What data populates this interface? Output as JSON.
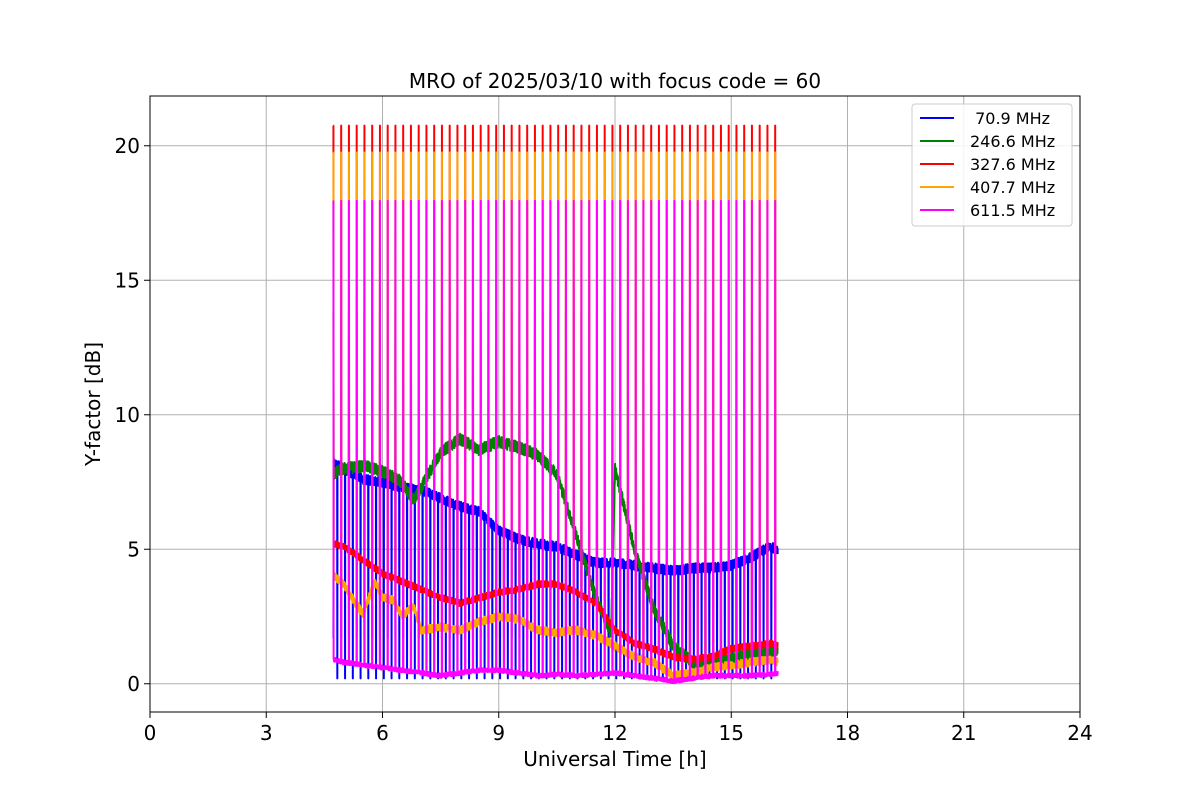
{
  "chart_data": {
    "type": "line",
    "title": "MRO of 2025/03/10 with focus code = 60",
    "xlabel": "Universal Time [h]",
    "ylabel": "Y-factor [dB]",
    "xlim": [
      0,
      24
    ],
    "ylim": [
      -1.05,
      21.85
    ],
    "xticks": [
      0,
      3,
      6,
      9,
      12,
      15,
      18,
      21,
      24
    ],
    "yticks": [
      0,
      5,
      10,
      15,
      20
    ],
    "grid": true,
    "legend_position": "top-right",
    "observation_start_h": 4.73,
    "observation_end_h": 16.2,
    "calibration_period_h": 0.2,
    "calibration_peak_values": {
      "70.9 MHz": 1.7,
      "246.6 MHz": 13.8,
      "327.6 MHz": 20.75,
      "407.7 MHz": 19.75,
      "611.5 MHz": 17.95
    },
    "series": [
      {
        "name": " 70.9 MHz",
        "color": "#0000ff",
        "x": [
          4.75,
          5.0,
          5.5,
          6.0,
          6.5,
          7.0,
          7.5,
          8.0,
          8.5,
          9.0,
          9.5,
          10.0,
          10.5,
          11.0,
          11.5,
          12.0,
          12.5,
          13.0,
          13.5,
          14.0,
          14.5,
          15.0,
          15.5,
          16.0,
          16.2
        ],
        "values": [
          8.2,
          8.0,
          7.6,
          7.5,
          7.3,
          7.2,
          6.9,
          6.6,
          6.4,
          5.7,
          5.4,
          5.2,
          5.1,
          4.8,
          4.5,
          4.5,
          4.4,
          4.3,
          4.2,
          4.3,
          4.3,
          4.4,
          4.7,
          5.1,
          5.0
        ]
      },
      {
        "name": "246.6 MHz",
        "color": "#008000",
        "x": [
          4.75,
          5.0,
          5.5,
          6.0,
          6.5,
          6.8,
          7.0,
          7.5,
          8.0,
          8.5,
          9.0,
          9.5,
          10.0,
          10.5,
          11.0,
          11.5,
          11.9,
          12.0,
          12.5,
          13.0,
          13.5,
          14.0,
          14.5,
          15.0,
          15.5,
          16.0
        ],
        "values": [
          7.8,
          8.0,
          8.1,
          7.9,
          7.5,
          6.8,
          7.3,
          8.6,
          9.1,
          8.7,
          9.0,
          8.8,
          8.5,
          7.8,
          5.5,
          3.2,
          1.9,
          8.0,
          5.0,
          2.8,
          1.4,
          0.8,
          0.7,
          0.9,
          1.1,
          1.2
        ]
      },
      {
        "name": "327.6 MHz",
        "color": "#ff0000",
        "x": [
          4.75,
          5.0,
          5.5,
          6.0,
          6.5,
          7.0,
          7.5,
          8.0,
          8.5,
          9.0,
          9.5,
          10.0,
          10.5,
          11.0,
          11.5,
          12.0,
          12.5,
          13.0,
          13.5,
          14.0,
          14.5,
          15.0,
          15.5,
          16.0,
          16.2
        ],
        "values": [
          5.2,
          5.1,
          4.6,
          4.1,
          3.8,
          3.5,
          3.2,
          3.0,
          3.2,
          3.4,
          3.5,
          3.7,
          3.7,
          3.4,
          3.0,
          2.0,
          1.5,
          1.3,
          1.0,
          0.9,
          1.0,
          1.3,
          1.4,
          1.5,
          1.4
        ]
      },
      {
        "name": "407.7 MHz",
        "color": "#ffa500",
        "x": [
          4.75,
          5.0,
          5.3,
          5.5,
          5.8,
          6.0,
          6.3,
          6.5,
          6.8,
          7.0,
          7.5,
          8.0,
          8.5,
          9.0,
          9.5,
          10.0,
          10.5,
          11.0,
          11.5,
          12.0,
          12.5,
          13.0,
          13.5,
          14.0,
          14.5,
          15.0,
          15.5,
          16.0,
          16.2
        ],
        "values": [
          4.0,
          3.7,
          3.0,
          2.6,
          3.8,
          3.2,
          3.1,
          2.5,
          2.9,
          2.0,
          2.1,
          2.0,
          2.3,
          2.5,
          2.4,
          2.0,
          1.9,
          2.0,
          1.8,
          1.4,
          1.0,
          0.8,
          0.3,
          0.4,
          0.6,
          0.7,
          0.8,
          0.9,
          0.8
        ]
      },
      {
        "name": "611.5 MHz",
        "color": "#ff00ff",
        "x": [
          4.75,
          5.0,
          5.5,
          6.0,
          6.5,
          7.0,
          7.5,
          8.0,
          8.5,
          9.0,
          9.5,
          10.0,
          10.5,
          11.0,
          11.5,
          12.0,
          12.5,
          13.0,
          13.5,
          14.0,
          14.5,
          15.0,
          15.5,
          16.0,
          16.2
        ],
        "values": [
          0.9,
          0.8,
          0.7,
          0.6,
          0.5,
          0.4,
          0.3,
          0.4,
          0.5,
          0.5,
          0.4,
          0.3,
          0.35,
          0.3,
          0.35,
          0.4,
          0.3,
          0.2,
          0.1,
          0.2,
          0.3,
          0.3,
          0.3,
          0.35,
          0.4
        ]
      }
    ]
  }
}
